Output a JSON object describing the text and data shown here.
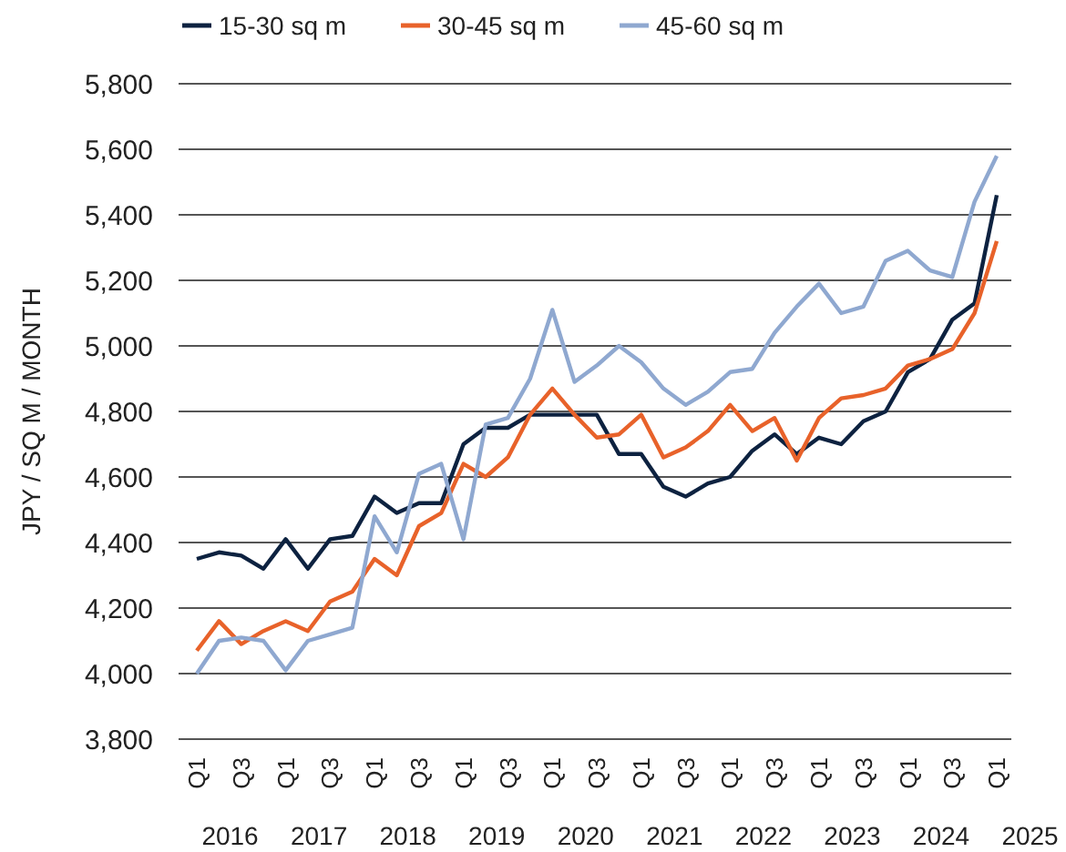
{
  "chart_data": {
    "type": "line",
    "ylabel": "JPY / SQ M / MONTH",
    "categories": [
      "Q1",
      null,
      "Q3",
      null,
      "Q1",
      null,
      "Q3",
      null,
      "Q1",
      null,
      "Q3",
      null,
      "Q1",
      null,
      "Q3",
      null,
      "Q1",
      null,
      "Q3",
      null,
      "Q1",
      null,
      "Q3",
      null,
      "Q1",
      null,
      "Q3",
      null,
      "Q1",
      null,
      "Q3",
      null,
      "Q1",
      null,
      "Q3",
      null,
      "Q1"
    ],
    "annotations": [
      "2016",
      "2017",
      "2018",
      "2019",
      "2020",
      "2021",
      "2022",
      "2023",
      "2024",
      "2025"
    ],
    "series": [
      {
        "name": "15-30 sq m",
        "color": "#0d2240",
        "values": [
          4350,
          4370,
          4360,
          4320,
          4410,
          4320,
          4410,
          4420,
          4540,
          4490,
          4520,
          4520,
          4700,
          4750,
          4750,
          4790,
          4790,
          4790,
          4790,
          4670,
          4670,
          4570,
          4540,
          4580,
          4600,
          4680,
          4730,
          4670,
          4720,
          4700,
          4770,
          4800,
          4920,
          4960,
          5080,
          5130,
          5460
        ]
      },
      {
        "name": "30-45 sq m",
        "color": "#e8622a",
        "values": [
          4070,
          4160,
          4090,
          4130,
          4160,
          4130,
          4220,
          4250,
          4350,
          4300,
          4450,
          4490,
          4640,
          4600,
          4660,
          4790,
          4870,
          4790,
          4720,
          4730,
          4790,
          4660,
          4690,
          4740,
          4820,
          4740,
          4780,
          4650,
          4780,
          4840,
          4850,
          4870,
          4940,
          4960,
          4990,
          5100,
          5320
        ]
      },
      {
        "name": "45-60 sq m",
        "color": "#8fa8d0",
        "values": [
          4000,
          4100,
          4110,
          4100,
          4010,
          4100,
          4120,
          4140,
          4480,
          4370,
          4610,
          4640,
          4410,
          4760,
          4780,
          4900,
          5110,
          4890,
          4940,
          5000,
          4950,
          4870,
          4820,
          4860,
          4920,
          4930,
          5040,
          5120,
          5190,
          5100,
          5120,
          5260,
          5290,
          5230,
          5210,
          5440,
          5580
        ]
      }
    ],
    "ylim": [
      3800,
      5800
    ],
    "yticks": [
      {
        "value": 3800,
        "label": "3,800"
      },
      {
        "value": 4000,
        "label": "4,000"
      },
      {
        "value": 4200,
        "label": "4,200"
      },
      {
        "value": 4400,
        "label": "4,400"
      },
      {
        "value": 4600,
        "label": "4,600"
      },
      {
        "value": 4800,
        "label": "4,800"
      },
      {
        "value": 5000,
        "label": "5,000"
      },
      {
        "value": 5200,
        "label": "5,200"
      },
      {
        "value": 5400,
        "label": "5,400"
      },
      {
        "value": 5600,
        "label": "5,600"
      },
      {
        "value": 5800,
        "label": "5,800"
      }
    ],
    "grid": "y",
    "legend": "top left",
    "line_style": "solid"
  }
}
